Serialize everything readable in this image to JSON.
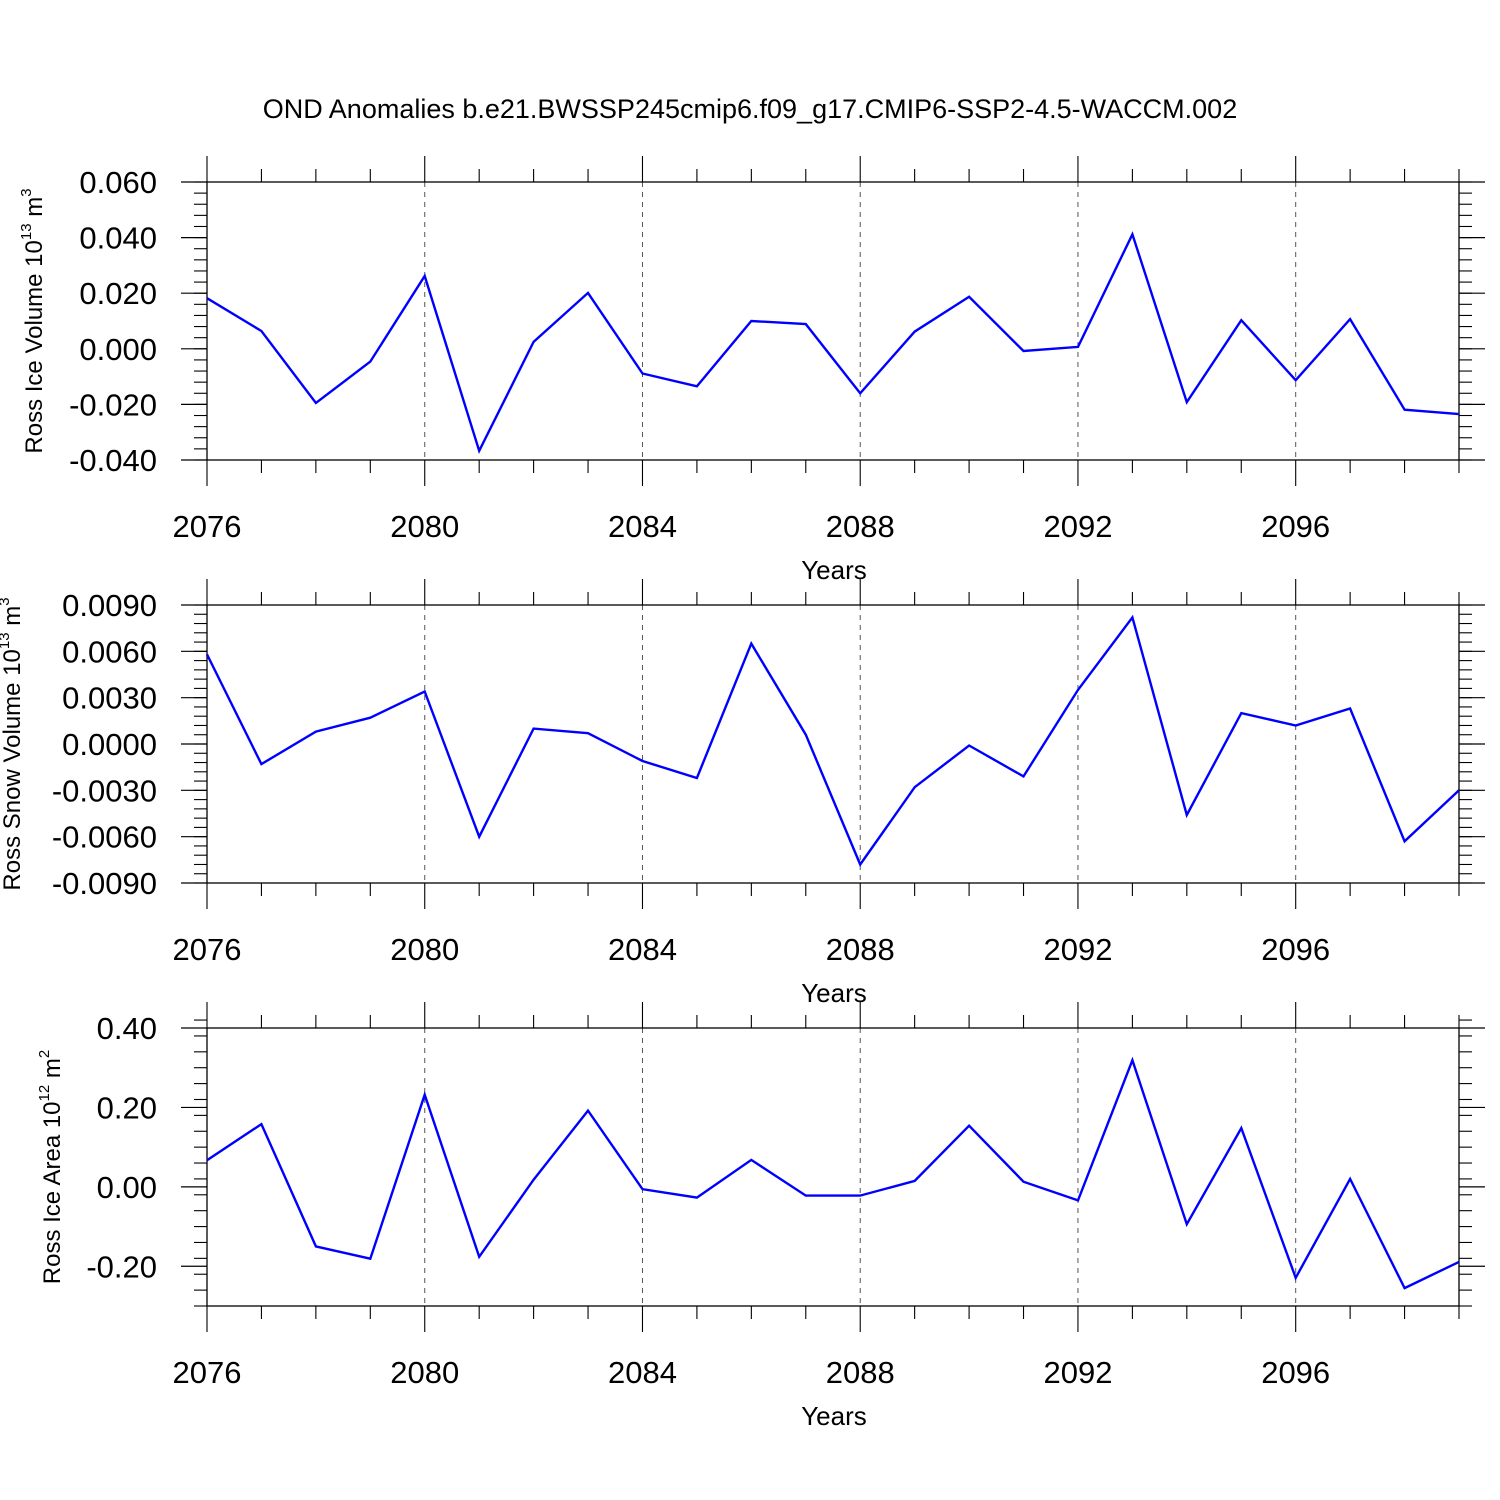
{
  "title": "OND Anomalies b.e21.BWSSP245cmip6.f09_g17.CMIP6-SSP2-4.5-WACCM.002",
  "colors": {
    "line": "#0000ff",
    "axis": "#000000",
    "grid": "#555555"
  },
  "chart_data": [
    {
      "type": "line",
      "ylabel": {
        "prefix": "Ross Ice Volume 10",
        "exp": "13",
        "unit": " m",
        "unit_exp": "3"
      },
      "xlabel": "Years",
      "xlim": [
        2076,
        2099
      ],
      "ylim": [
        -0.04,
        0.06
      ],
      "xticks": [
        "2076",
        "2080",
        "2084",
        "2088",
        "2092",
        "2096"
      ],
      "yticks": [
        "0.060",
        "0.040",
        "0.020",
        "0.000",
        "-0.020",
        "-0.040"
      ],
      "x": [
        2076,
        2077,
        2078,
        2079,
        2080,
        2081,
        2082,
        2083,
        2084,
        2085,
        2086,
        2087,
        2088,
        2089,
        2090,
        2091,
        2092,
        2093,
        2094,
        2095,
        2096,
        2097,
        2098,
        2099
      ],
      "values": [
        0.0182,
        0.0064,
        -0.0195,
        -0.0046,
        0.0262,
        -0.0367,
        0.0025,
        0.0201,
        -0.0089,
        -0.0135,
        0.01,
        0.0089,
        -0.016,
        0.0062,
        0.0187,
        -0.0008,
        0.0007,
        0.0412,
        -0.0192,
        0.0103,
        -0.0113,
        0.0107,
        -0.0219,
        -0.0235
      ],
      "grid": "vertical dashed at major x ticks"
    },
    {
      "type": "line",
      "ylabel": {
        "prefix": "Ross Snow Volume 10",
        "exp": "13",
        "unit": " m",
        "unit_exp": "3"
      },
      "xlabel": "Years",
      "xlim": [
        2076,
        2099
      ],
      "ylim": [
        -0.009,
        0.009
      ],
      "xticks": [
        "2076",
        "2080",
        "2084",
        "2088",
        "2092",
        "2096"
      ],
      "yticks": [
        "0.0090",
        "0.0060",
        "0.0030",
        "0.0000",
        "-0.0030",
        "-0.0060",
        "-0.0090"
      ],
      "x": [
        2076,
        2077,
        2078,
        2079,
        2080,
        2081,
        2082,
        2083,
        2084,
        2085,
        2086,
        2087,
        2088,
        2089,
        2090,
        2091,
        2092,
        2093,
        2094,
        2095,
        2096,
        2097,
        2098,
        2099
      ],
      "values": [
        0.0058,
        -0.0013,
        0.0008,
        0.0017,
        0.0034,
        -0.006,
        0.001,
        0.0007,
        -0.0011,
        -0.0022,
        0.0065,
        0.0006,
        -0.0078,
        -0.0028,
        -0.0001,
        -0.0021,
        0.0035,
        0.0082,
        -0.0046,
        0.002,
        0.0012,
        0.0023,
        -0.0063,
        -0.003
      ],
      "grid": "vertical dashed at major x ticks"
    },
    {
      "type": "line",
      "ylabel": {
        "prefix": "Ross Ice Area 10",
        "exp": "12",
        "unit": " m",
        "unit_exp": "2"
      },
      "xlabel": "Years",
      "xlim": [
        2076,
        2099
      ],
      "ylim": [
        -0.3,
        0.4
      ],
      "xticks": [
        "2076",
        "2080",
        "2084",
        "2088",
        "2092",
        "2096"
      ],
      "yticks": [
        "0.40",
        "0.20",
        "0.00",
        "-0.20"
      ],
      "ytick_values": [
        0.4,
        0.2,
        0.0,
        -0.2
      ],
      "x": [
        2076,
        2077,
        2078,
        2079,
        2080,
        2081,
        2082,
        2083,
        2084,
        2085,
        2086,
        2087,
        2088,
        2089,
        2090,
        2091,
        2092,
        2093,
        2094,
        2095,
        2096,
        2097,
        2098,
        2099
      ],
      "values": [
        0.067,
        0.158,
        -0.15,
        -0.181,
        0.232,
        -0.176,
        0.018,
        0.192,
        -0.006,
        -0.027,
        0.068,
        -0.022,
        -0.022,
        0.015,
        0.154,
        0.013,
        -0.034,
        0.319,
        -0.094,
        0.148,
        -0.229,
        0.02,
        -0.255,
        -0.189
      ],
      "grid": "vertical dashed at major x ticks"
    }
  ]
}
